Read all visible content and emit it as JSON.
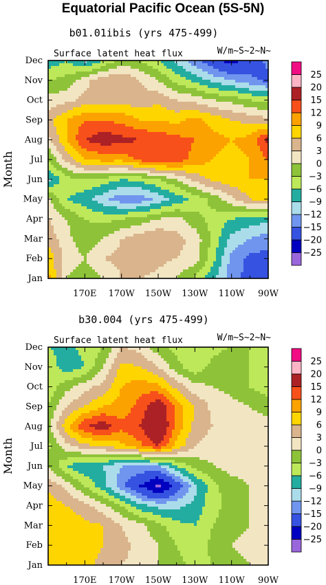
{
  "figure": {
    "title": "Equatorial Pacific Ocean (5S-5N)"
  },
  "chart_data": [
    {
      "type": "heatmap",
      "subtitle": "b01.01ibis (yrs 475-499)",
      "variable_label": "Surface latent heat flux",
      "units_label": "W/m~S~2~N~",
      "ylabel": "Month",
      "xticks": [
        "170E",
        "170W",
        "150W",
        "130W",
        "110W",
        "90W"
      ],
      "yticks": [
        "Jan",
        "Feb",
        "Mar",
        "Apr",
        "May",
        "Jun",
        "Jul",
        "Aug",
        "Sep",
        "Oct",
        "Nov",
        "Dec"
      ],
      "x": [
        150,
        160,
        170,
        180,
        190,
        200,
        210,
        220,
        230,
        240,
        250,
        260,
        270
      ],
      "z": [
        [
          10,
          0,
          -2,
          0,
          3,
          3,
          2,
          0,
          -4,
          -8,
          -14,
          -16,
          -18
        ],
        [
          8,
          2,
          0,
          3,
          4,
          6,
          4,
          3,
          2,
          -5,
          -13,
          -16,
          -16
        ],
        [
          5,
          1,
          -2,
          0,
          3,
          5,
          6,
          4,
          2,
          -4,
          -10,
          -12,
          -14
        ],
        [
          3,
          0,
          -3,
          -4,
          -3,
          -2,
          0,
          1,
          -2,
          -4,
          -6,
          -7,
          -8
        ],
        [
          1,
          -6,
          -8,
          -11,
          -14,
          -14,
          -11,
          -8,
          -5,
          -2,
          2,
          6,
          7
        ],
        [
          -10,
          -4,
          -3,
          -4,
          -6,
          -5,
          -3,
          0,
          4,
          7,
          8,
          9,
          9
        ],
        [
          -3,
          4,
          9,
          10,
          10,
          13,
          15,
          14,
          11,
          9,
          8,
          9,
          12
        ],
        [
          2,
          9,
          15,
          17,
          16,
          15,
          14,
          13,
          12,
          10,
          9,
          10,
          16
        ],
        [
          5,
          9,
          12,
          12,
          11,
          9,
          9,
          8,
          10,
          8,
          6,
          5,
          4
        ],
        [
          1,
          2,
          4,
          4,
          5,
          4,
          5,
          3,
          2,
          0,
          -1,
          -3,
          -4
        ],
        [
          -3,
          -2,
          2,
          5,
          6,
          3,
          0,
          -4,
          -7,
          -10,
          -12,
          -14,
          -16
        ],
        [
          -8,
          -6,
          -10,
          -6,
          -2,
          -3,
          -6,
          -10,
          -14,
          -18,
          -22,
          -18,
          -14
        ]
      ],
      "levels": [
        -25,
        -20,
        -15,
        -12,
        -9,
        -6,
        -3,
        0,
        3,
        6,
        9,
        12,
        15,
        20,
        25
      ],
      "colorbar_labels": [
        "25",
        "20",
        "15",
        "12",
        "9",
        "6",
        "3",
        "0",
        "−3",
        "−6",
        "−9",
        "−12",
        "−15",
        "−20",
        "−25"
      ]
    },
    {
      "type": "heatmap",
      "subtitle": "b30.004 (yrs 475-499)",
      "variable_label": "Surface latent heat flux",
      "units_label": "W/m~S~2~N~",
      "ylabel": "Month",
      "xticks": [
        "170E",
        "170W",
        "150W",
        "130W",
        "110W",
        "90W"
      ],
      "yticks": [
        "Jan",
        "Feb",
        "Mar",
        "Apr",
        "May",
        "Jun",
        "Jul",
        "Aug",
        "Sep",
        "Oct",
        "Nov",
        "Dec"
      ],
      "x": [
        150,
        160,
        170,
        180,
        190,
        200,
        210,
        220,
        230,
        240,
        250,
        260,
        270
      ],
      "z": [
        [
          6,
          8,
          7,
          5,
          3,
          2,
          0,
          -2,
          -4,
          -3,
          -1,
          0,
          1
        ],
        [
          8,
          9,
          8,
          6,
          4,
          2,
          0,
          -3,
          -5,
          -2,
          0,
          1,
          1
        ],
        [
          9,
          8,
          7,
          6,
          3,
          1,
          -2,
          -5,
          -6,
          -3,
          -1,
          0,
          1
        ],
        [
          8,
          6,
          4,
          1,
          -3,
          -8,
          -10,
          -10,
          -8,
          -4,
          -2,
          0,
          0
        ],
        [
          5,
          2,
          -3,
          -8,
          -14,
          -20,
          -26,
          -18,
          -10,
          -4,
          -1,
          0,
          0
        ],
        [
          0,
          -6,
          -9,
          -9,
          -12,
          -12,
          -12,
          -6,
          -2,
          0,
          1,
          1,
          1
        ],
        [
          -4,
          2,
          5,
          6,
          8,
          11,
          15,
          8,
          3,
          1,
          0,
          1,
          1
        ],
        [
          -1,
          8,
          15,
          17,
          13,
          15,
          20,
          11,
          5,
          3,
          1,
          1,
          1
        ],
        [
          -3,
          3,
          6,
          9,
          10,
          13,
          18,
          11,
          6,
          2,
          1,
          0,
          -1
        ],
        [
          -5,
          -1,
          2,
          4,
          9,
          11,
          10,
          5,
          1,
          0,
          -1,
          -3,
          -5
        ],
        [
          -4,
          -8,
          -6,
          0,
          7,
          6,
          3,
          -2,
          -5,
          -2,
          0,
          -3,
          -6
        ],
        [
          -6,
          -7,
          -5,
          -3,
          3,
          2,
          -2,
          -4,
          -5,
          -4,
          -3,
          -3,
          -4
        ]
      ],
      "levels": [
        -25,
        -20,
        -15,
        -12,
        -9,
        -6,
        -3,
        0,
        3,
        6,
        9,
        12,
        15,
        20,
        25
      ],
      "colorbar_labels": [
        "25",
        "20",
        "15",
        "12",
        "9",
        "6",
        "3",
        "0",
        "−3",
        "−6",
        "−9",
        "−12",
        "−15",
        "−20",
        "−25"
      ]
    }
  ],
  "palette": [
    "#9a66dc",
    "#0000c0",
    "#3652e0",
    "#6f95ee",
    "#abdcea",
    "#23ada0",
    "#bde85a",
    "#8ec339",
    "#f2e5c2",
    "#d9b48c",
    "#ffd500",
    "#fca200",
    "#f8501a",
    "#ac2125",
    "#ffb4c6",
    "#f20c84"
  ]
}
